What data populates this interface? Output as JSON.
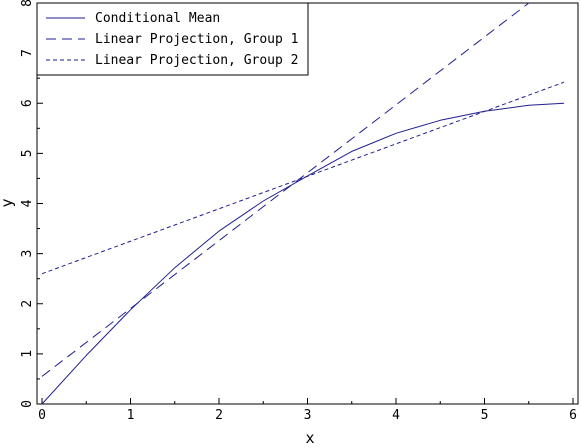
{
  "chart_data": {
    "type": "line",
    "xlabel": "x",
    "ylabel": "y",
    "xlim": [
      0,
      6
    ],
    "ylim": [
      0,
      8
    ],
    "xticks": [
      0,
      1,
      2,
      3,
      4,
      5,
      6
    ],
    "yticks": [
      0,
      1,
      2,
      3,
      4,
      5,
      6,
      7,
      8
    ],
    "grid": false,
    "legend_position": "top-left",
    "line_color": "#1f1f8f",
    "series": [
      {
        "name": "Conditional Mean",
        "style": "solid",
        "x": [
          0,
          0.5,
          1,
          1.5,
          2,
          2.5,
          3,
          3.5,
          4,
          4.5,
          5,
          5.5,
          5.9
        ],
        "y": [
          0.0,
          0.97,
          1.88,
          2.72,
          3.45,
          4.05,
          4.55,
          5.04,
          5.4,
          5.66,
          5.84,
          5.96,
          6.0
        ]
      },
      {
        "name": "Linear Projection, Group 1",
        "style": "long-dash",
        "x": [
          0,
          5.5
        ],
        "y": [
          0.55,
          8.0
        ]
      },
      {
        "name": "Linear Projection, Group 2",
        "style": "short-dash",
        "x": [
          0,
          5.9
        ],
        "y": [
          2.6,
          6.42
        ]
      }
    ]
  }
}
